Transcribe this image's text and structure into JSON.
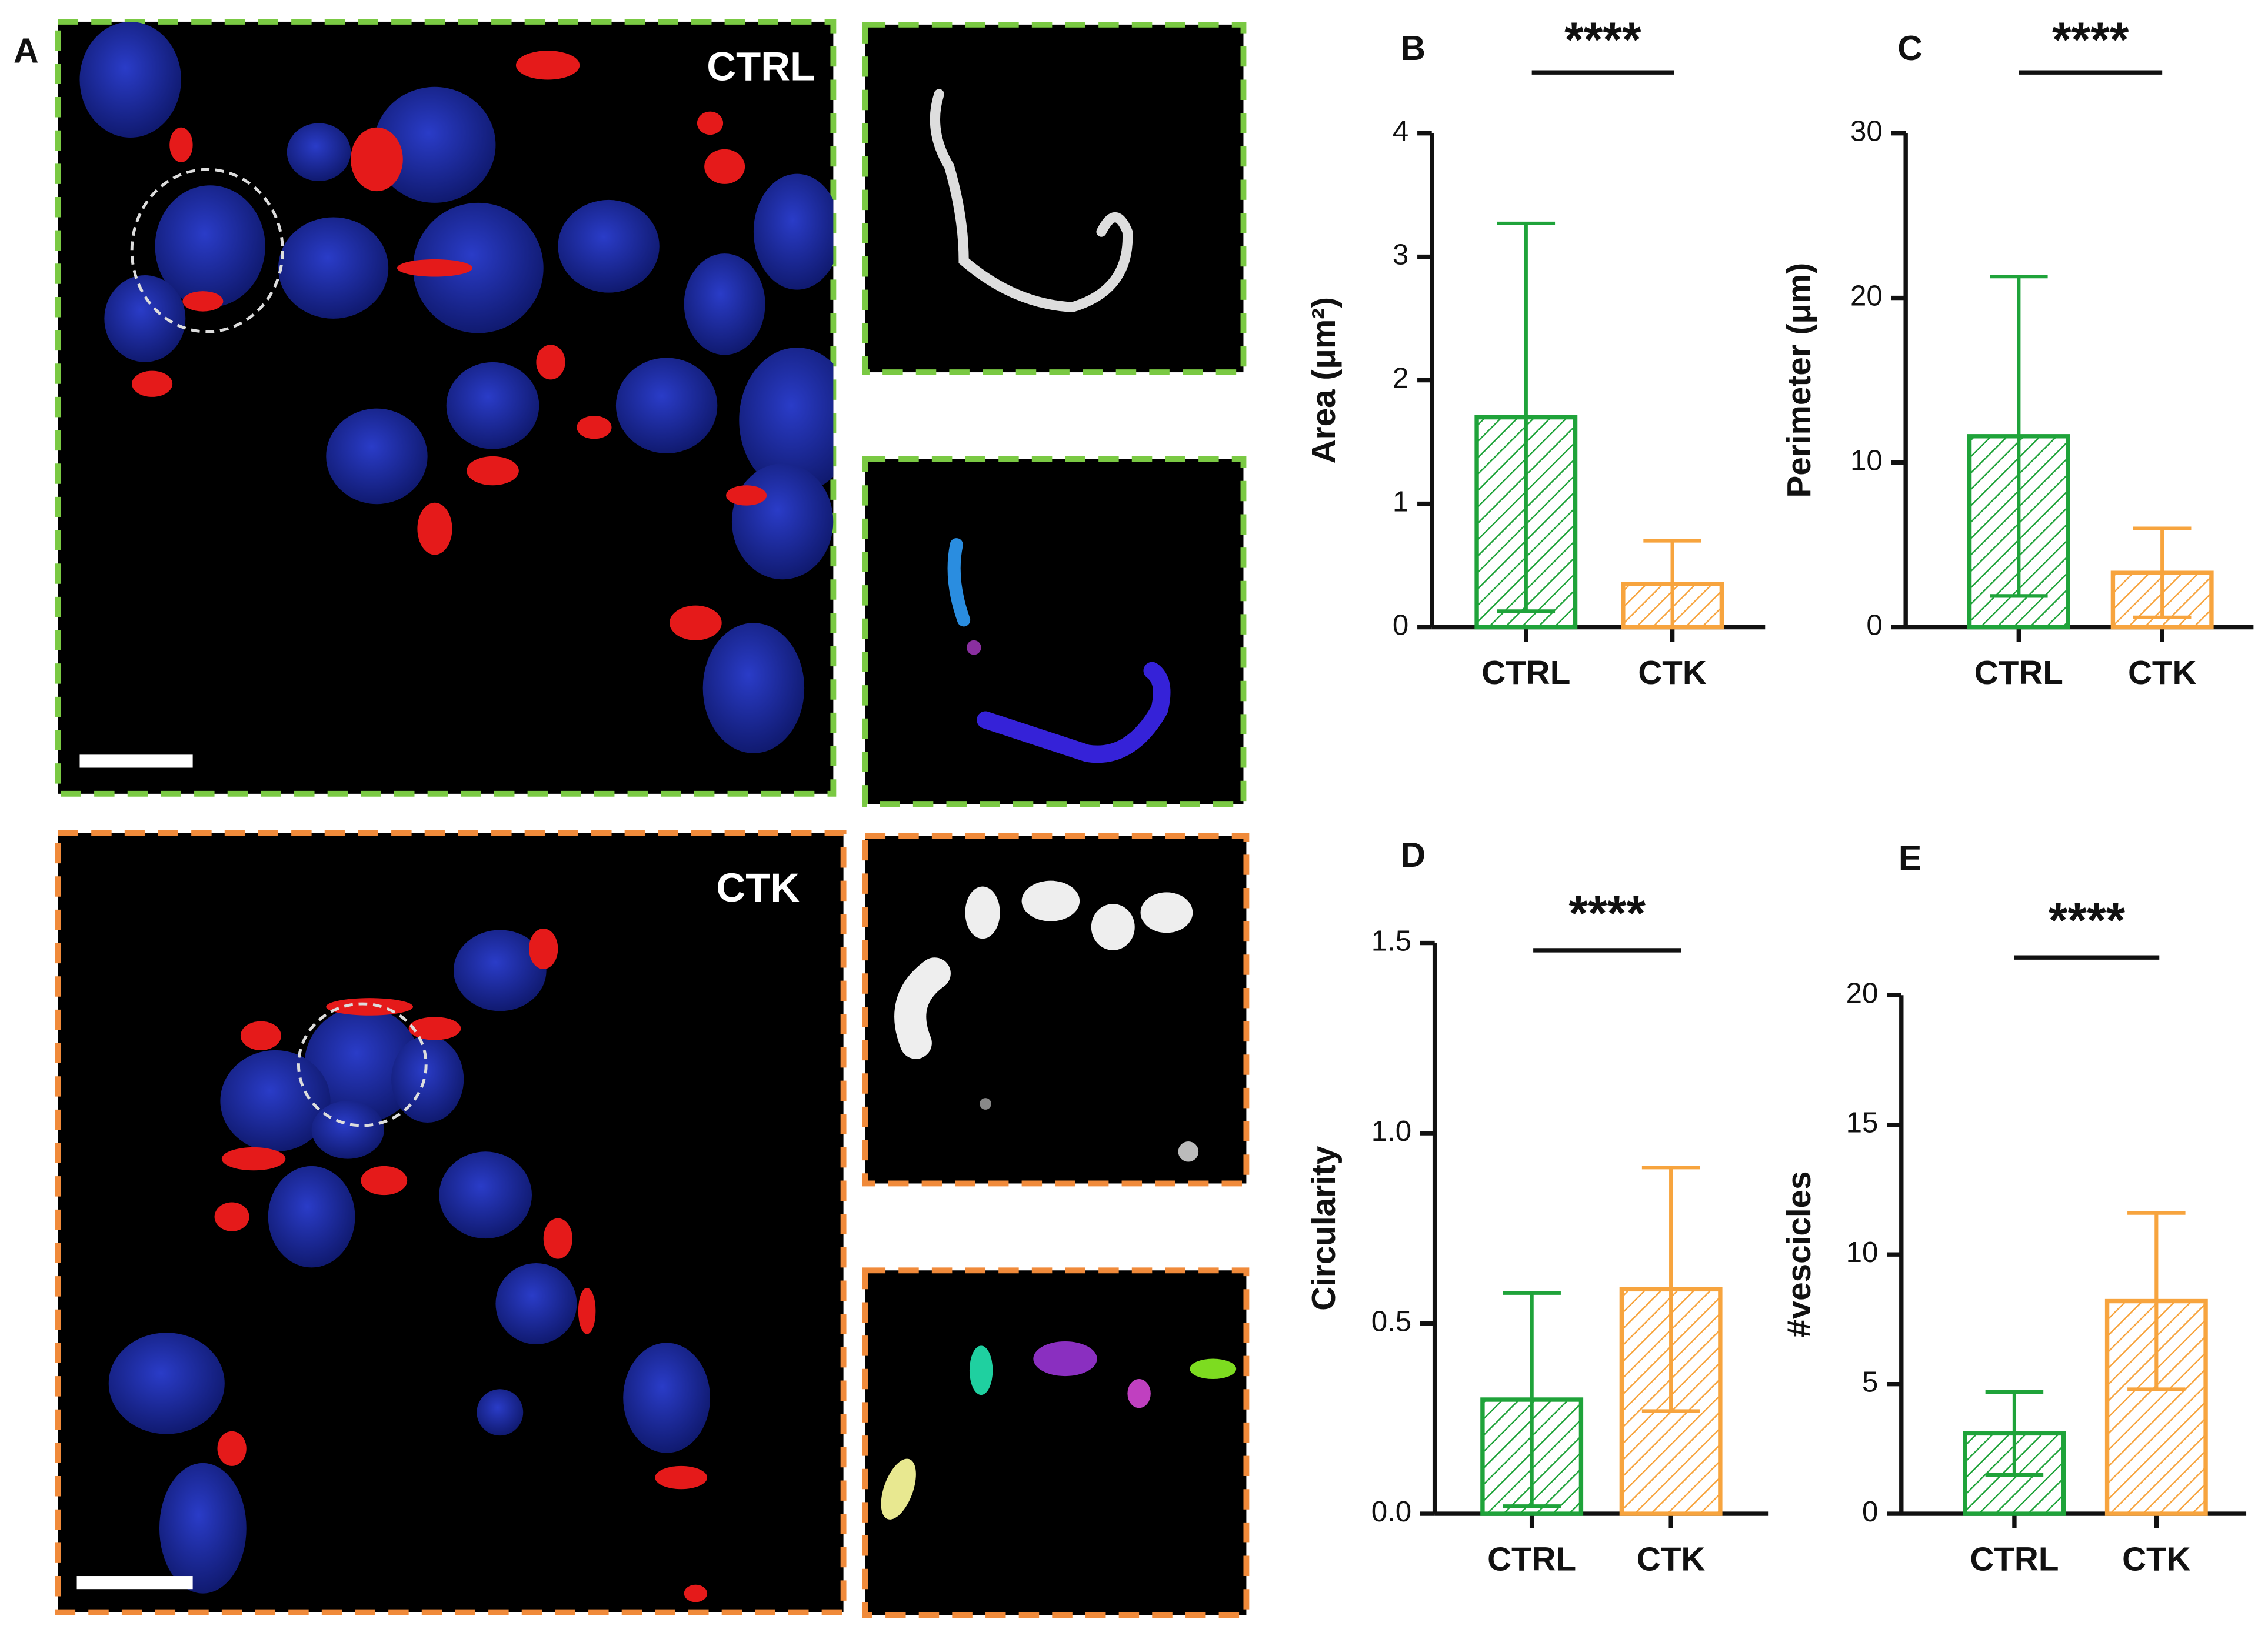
{
  "panel_a": {
    "letter": "A",
    "conditions": [
      "CTRL",
      "CTK"
    ]
  },
  "chart_data": [
    {
      "type": "bar",
      "panel": "B",
      "y_label": "Area (μm²)",
      "annotation": "****",
      "categories": [
        "CTRL",
        "CTK"
      ],
      "values": [
        1.7,
        0.35
      ],
      "errors": [
        1.57,
        0.35
      ],
      "colors": [
        "#1fa33a",
        "#f7a43e"
      ],
      "ylim": [
        0,
        4
      ],
      "yticks": [
        0,
        1,
        2,
        3,
        4
      ]
    },
    {
      "type": "bar",
      "panel": "C",
      "y_label": "Perimeter (μm)",
      "annotation": "****",
      "categories": [
        "CTRL",
        "CTK"
      ],
      "values": [
        11.6,
        3.3
      ],
      "errors": [
        9.7,
        2.7
      ],
      "colors": [
        "#1fa33a",
        "#f7a43e"
      ],
      "ylim": [
        0,
        30
      ],
      "yticks": [
        0,
        10,
        20,
        30
      ]
    },
    {
      "type": "bar",
      "panel": "D",
      "y_label": "Circularity",
      "annotation": "****",
      "categories": [
        "CTRL",
        "CTK"
      ],
      "values": [
        0.3,
        0.59
      ],
      "errors": [
        0.28,
        0.32
      ],
      "colors": [
        "#1fa33a",
        "#f7a43e"
      ],
      "ylim": [
        0,
        1.5
      ],
      "yticks": [
        {
          "value": 0,
          "label": "0.0"
        },
        0.5,
        {
          "value": 1,
          "label": "1.0"
        },
        1.5
      ]
    },
    {
      "type": "bar",
      "panel": "E",
      "y_label": "#vescicles",
      "annotation": "****",
      "categories": [
        "CTRL",
        "CTK"
      ],
      "values": [
        3.1,
        8.2
      ],
      "errors": [
        1.6,
        3.4
      ],
      "colors": [
        "#1fa33a",
        "#f7a43e"
      ],
      "ylim": [
        0,
        20
      ],
      "yticks": [
        0,
        5,
        10,
        15,
        20
      ]
    }
  ]
}
